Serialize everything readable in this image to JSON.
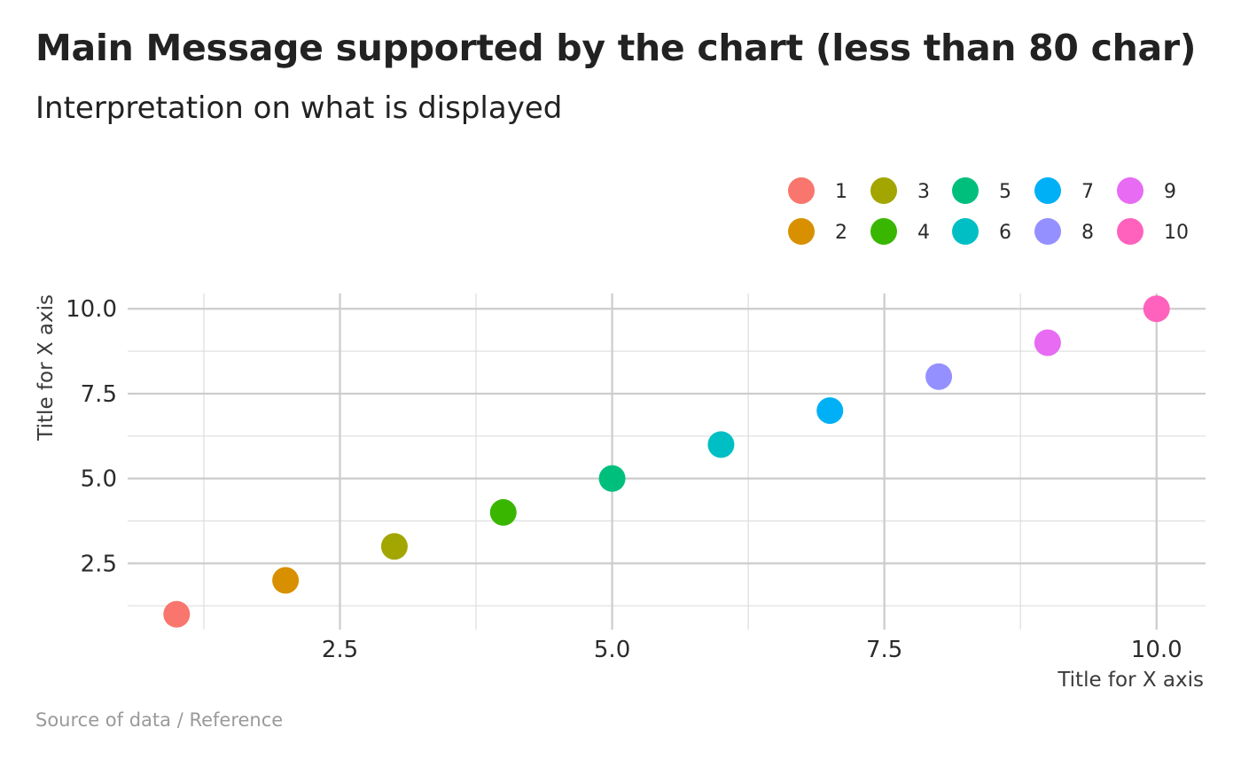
{
  "title": "Main Message supported by the chart (less than 80 char)",
  "subtitle": "Interpretation on what is displayed",
  "caption": "Source of data / Reference",
  "chart_data": {
    "type": "scatter",
    "xlabel": "Title for X axis",
    "ylabel": "Title for X axis",
    "xlim": [
      0.55,
      10.45
    ],
    "ylim": [
      0.55,
      10.45
    ],
    "x_ticks": [
      2.5,
      5.0,
      7.5,
      10.0
    ],
    "x_tick_labels": [
      "2.5",
      "5.0",
      "7.5",
      "10.0"
    ],
    "y_ticks": [
      2.5,
      5.0,
      7.5,
      10.0
    ],
    "y_tick_labels": [
      "2.5",
      "5.0",
      "7.5",
      "10.0"
    ],
    "grid": true,
    "legend_position": "top-right",
    "series": [
      {
        "name": "1",
        "x": 1,
        "y": 1,
        "color": "#F8766D"
      },
      {
        "name": "2",
        "x": 2,
        "y": 2,
        "color": "#D89000"
      },
      {
        "name": "3",
        "x": 3,
        "y": 3,
        "color": "#A3A500"
      },
      {
        "name": "4",
        "x": 4,
        "y": 4,
        "color": "#39B600"
      },
      {
        "name": "5",
        "x": 5,
        "y": 5,
        "color": "#00BF7D"
      },
      {
        "name": "6",
        "x": 6,
        "y": 6,
        "color": "#00BFC4"
      },
      {
        "name": "7",
        "x": 7,
        "y": 7,
        "color": "#00B0F6"
      },
      {
        "name": "8",
        "x": 8,
        "y": 8,
        "color": "#9590FF"
      },
      {
        "name": "9",
        "x": 9,
        "y": 9,
        "color": "#E76BF3"
      },
      {
        "name": "10",
        "x": 10,
        "y": 10,
        "color": "#FF62BC"
      }
    ]
  }
}
